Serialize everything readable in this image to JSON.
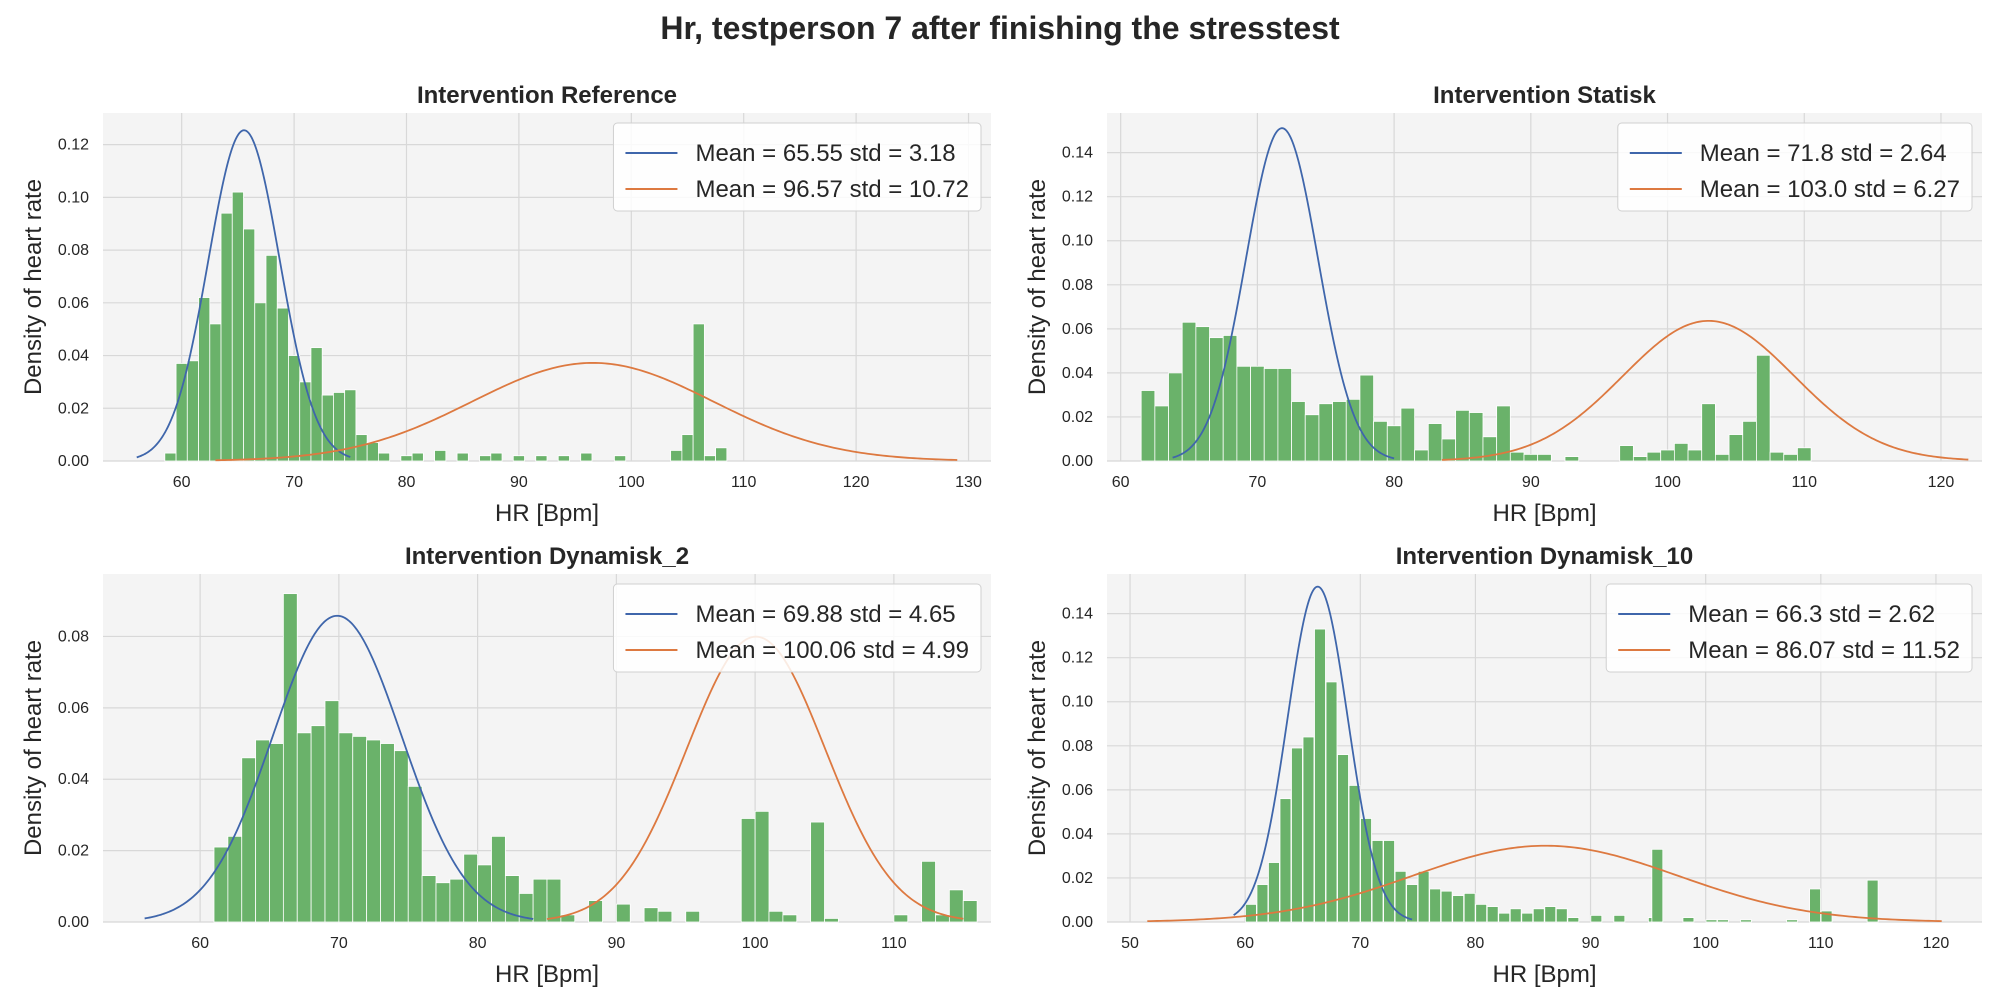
{
  "figure": {
    "title": "Hr, testperson 7 after finishing the stresstest",
    "bar_color": "#6ab26a",
    "plot_bg": "#f4f4f4",
    "grid_color": "#d8d8d8",
    "line_colors": [
      "#3f66ab",
      "#dd7940"
    ]
  },
  "chart_data": [
    {
      "type": "bar",
      "title": "Intervention Reference",
      "xlabel": "HR [Bpm]",
      "ylabel": "Density of heart rate",
      "xlim": [
        53,
        132
      ],
      "ylim": [
        0,
        0.132
      ],
      "xticks": [
        60,
        70,
        80,
        90,
        100,
        110,
        120,
        130
      ],
      "yticks": [
        0.0,
        0.02,
        0.04,
        0.06,
        0.08,
        0.1,
        0.12
      ],
      "ytick_decimals": 2,
      "grid": true,
      "legend_position": "top-right",
      "bin_width": 1.0,
      "histogram": [
        {
          "x": 59,
          "y": 0.003
        },
        {
          "x": 60,
          "y": 0.037
        },
        {
          "x": 61,
          "y": 0.038
        },
        {
          "x": 62,
          "y": 0.062
        },
        {
          "x": 63,
          "y": 0.052
        },
        {
          "x": 64,
          "y": 0.094
        },
        {
          "x": 65,
          "y": 0.102
        },
        {
          "x": 66,
          "y": 0.088
        },
        {
          "x": 67,
          "y": 0.06
        },
        {
          "x": 68,
          "y": 0.078
        },
        {
          "x": 69,
          "y": 0.058
        },
        {
          "x": 70,
          "y": 0.04
        },
        {
          "x": 71,
          "y": 0.03
        },
        {
          "x": 72,
          "y": 0.043
        },
        {
          "x": 73,
          "y": 0.025
        },
        {
          "x": 74,
          "y": 0.026
        },
        {
          "x": 75,
          "y": 0.027
        },
        {
          "x": 76,
          "y": 0.01
        },
        {
          "x": 77,
          "y": 0.007
        },
        {
          "x": 78,
          "y": 0.003
        },
        {
          "x": 80,
          "y": 0.002
        },
        {
          "x": 81,
          "y": 0.003
        },
        {
          "x": 83,
          "y": 0.004
        },
        {
          "x": 85,
          "y": 0.003
        },
        {
          "x": 87,
          "y": 0.002
        },
        {
          "x": 88,
          "y": 0.003
        },
        {
          "x": 90,
          "y": 0.002
        },
        {
          "x": 92,
          "y": 0.002
        },
        {
          "x": 94,
          "y": 0.002
        },
        {
          "x": 96,
          "y": 0.003
        },
        {
          "x": 99,
          "y": 0.002
        },
        {
          "x": 104,
          "y": 0.004
        },
        {
          "x": 105,
          "y": 0.01
        },
        {
          "x": 106,
          "y": 0.052
        },
        {
          "x": 107,
          "y": 0.002
        },
        {
          "x": 108,
          "y": 0.005
        }
      ],
      "series": [
        {
          "name": "Mean = 65.55 std = 3.18",
          "mean": 65.55,
          "std": 3.18,
          "x_range": [
            56,
            75
          ]
        },
        {
          "name": "Mean = 96.57 std = 10.72",
          "mean": 96.57,
          "std": 10.72,
          "x_range": [
            63,
            129
          ]
        }
      ]
    },
    {
      "type": "bar",
      "title": "Intervention Statisk",
      "xlabel": "HR [Bpm]",
      "ylabel": "Density of heart rate",
      "xlim": [
        59,
        123
      ],
      "ylim": [
        0,
        0.158
      ],
      "xticks": [
        60,
        70,
        80,
        90,
        100,
        110,
        120
      ],
      "yticks": [
        0.0,
        0.02,
        0.04,
        0.06,
        0.08,
        0.1,
        0.12,
        0.14
      ],
      "ytick_decimals": 2,
      "grid": true,
      "legend_position": "top-right",
      "bin_width": 1.0,
      "histogram": [
        {
          "x": 62,
          "y": 0.032
        },
        {
          "x": 63,
          "y": 0.025
        },
        {
          "x": 64,
          "y": 0.04
        },
        {
          "x": 65,
          "y": 0.063
        },
        {
          "x": 66,
          "y": 0.061
        },
        {
          "x": 67,
          "y": 0.056
        },
        {
          "x": 68,
          "y": 0.057
        },
        {
          "x": 69,
          "y": 0.043
        },
        {
          "x": 70,
          "y": 0.043
        },
        {
          "x": 71,
          "y": 0.042
        },
        {
          "x": 72,
          "y": 0.042
        },
        {
          "x": 73,
          "y": 0.027
        },
        {
          "x": 74,
          "y": 0.021
        },
        {
          "x": 75,
          "y": 0.026
        },
        {
          "x": 76,
          "y": 0.027
        },
        {
          "x": 77,
          "y": 0.028
        },
        {
          "x": 78,
          "y": 0.039
        },
        {
          "x": 79,
          "y": 0.018
        },
        {
          "x": 80,
          "y": 0.016
        },
        {
          "x": 81,
          "y": 0.024
        },
        {
          "x": 82,
          "y": 0.005
        },
        {
          "x": 83,
          "y": 0.017
        },
        {
          "x": 84,
          "y": 0.01
        },
        {
          "x": 85,
          "y": 0.023
        },
        {
          "x": 86,
          "y": 0.022
        },
        {
          "x": 87,
          "y": 0.011
        },
        {
          "x": 88,
          "y": 0.025
        },
        {
          "x": 89,
          "y": 0.004
        },
        {
          "x": 90,
          "y": 0.003
        },
        {
          "x": 91,
          "y": 0.003
        },
        {
          "x": 93,
          "y": 0.002
        },
        {
          "x": 97,
          "y": 0.007
        },
        {
          "x": 98,
          "y": 0.002
        },
        {
          "x": 99,
          "y": 0.004
        },
        {
          "x": 100,
          "y": 0.005
        },
        {
          "x": 101,
          "y": 0.008
        },
        {
          "x": 102,
          "y": 0.005
        },
        {
          "x": 103,
          "y": 0.026
        },
        {
          "x": 104,
          "y": 0.003
        },
        {
          "x": 105,
          "y": 0.012
        },
        {
          "x": 106,
          "y": 0.018
        },
        {
          "x": 107,
          "y": 0.048
        },
        {
          "x": 108,
          "y": 0.004
        },
        {
          "x": 109,
          "y": 0.003
        },
        {
          "x": 110,
          "y": 0.006
        }
      ],
      "series": [
        {
          "name": "Mean = 71.8 std = 2.64",
          "mean": 71.8,
          "std": 2.64,
          "x_range": [
            63.8,
            80
          ]
        },
        {
          "name": "Mean = 103.0 std = 6.27",
          "mean": 103.0,
          "std": 6.27,
          "x_range": [
            83.5,
            122
          ]
        }
      ]
    },
    {
      "type": "bar",
      "title": "Intervention Dynamisk_2",
      "xlabel": "HR [Bpm]",
      "ylabel": "Density of heart rate",
      "xlim": [
        53,
        117
      ],
      "ylim": [
        0,
        0.0975
      ],
      "xticks": [
        60,
        70,
        80,
        90,
        100,
        110
      ],
      "yticks": [
        0.0,
        0.02,
        0.04,
        0.06,
        0.08
      ],
      "ytick_decimals": 2,
      "grid": true,
      "legend_position": "top-right",
      "bin_width": 1.0,
      "histogram": [
        {
          "x": 61.5,
          "y": 0.021
        },
        {
          "x": 62.5,
          "y": 0.024
        },
        {
          "x": 63.5,
          "y": 0.046
        },
        {
          "x": 64.5,
          "y": 0.051
        },
        {
          "x": 65.5,
          "y": 0.05
        },
        {
          "x": 66.5,
          "y": 0.092
        },
        {
          "x": 67.5,
          "y": 0.053
        },
        {
          "x": 68.5,
          "y": 0.055
        },
        {
          "x": 69.5,
          "y": 0.062
        },
        {
          "x": 70.5,
          "y": 0.053
        },
        {
          "x": 71.5,
          "y": 0.052
        },
        {
          "x": 72.5,
          "y": 0.051
        },
        {
          "x": 73.5,
          "y": 0.05
        },
        {
          "x": 74.5,
          "y": 0.048
        },
        {
          "x": 75.5,
          "y": 0.038
        },
        {
          "x": 76.5,
          "y": 0.013
        },
        {
          "x": 77.5,
          "y": 0.011
        },
        {
          "x": 78.5,
          "y": 0.012
        },
        {
          "x": 79.5,
          "y": 0.019
        },
        {
          "x": 80.5,
          "y": 0.016
        },
        {
          "x": 81.5,
          "y": 0.024
        },
        {
          "x": 82.5,
          "y": 0.013
        },
        {
          "x": 83.5,
          "y": 0.008
        },
        {
          "x": 84.5,
          "y": 0.012
        },
        {
          "x": 85.5,
          "y": 0.012
        },
        {
          "x": 86.5,
          "y": 0.002
        },
        {
          "x": 88.5,
          "y": 0.006
        },
        {
          "x": 90.5,
          "y": 0.005
        },
        {
          "x": 92.5,
          "y": 0.004
        },
        {
          "x": 93.5,
          "y": 0.003
        },
        {
          "x": 95.5,
          "y": 0.003
        },
        {
          "x": 99.5,
          "y": 0.029
        },
        {
          "x": 100.5,
          "y": 0.031
        },
        {
          "x": 101.5,
          "y": 0.003
        },
        {
          "x": 102.5,
          "y": 0.002
        },
        {
          "x": 104.5,
          "y": 0.028
        },
        {
          "x": 105.5,
          "y": 0.001
        },
        {
          "x": 110.5,
          "y": 0.002
        },
        {
          "x": 112.5,
          "y": 0.017
        },
        {
          "x": 113.5,
          "y": 0.002
        },
        {
          "x": 114.5,
          "y": 0.009
        },
        {
          "x": 115.5,
          "y": 0.006
        }
      ],
      "series": [
        {
          "name": "Mean = 69.88 std = 4.65",
          "mean": 69.88,
          "std": 4.65,
          "x_range": [
            56,
            84
          ]
        },
        {
          "name": "Mean = 100.06 std = 4.99",
          "mean": 100.06,
          "std": 4.99,
          "x_range": [
            85,
            115
          ]
        }
      ]
    },
    {
      "type": "bar",
      "title": "Intervention Dynamisk_10",
      "xlabel": "HR [Bpm]",
      "ylabel": "Density of heart rate",
      "xlim": [
        48,
        124
      ],
      "ylim": [
        0,
        0.158
      ],
      "xticks": [
        50,
        60,
        70,
        80,
        90,
        100,
        110,
        120
      ],
      "yticks": [
        0.0,
        0.02,
        0.04,
        0.06,
        0.08,
        0.1,
        0.12,
        0.14
      ],
      "ytick_decimals": 2,
      "grid": true,
      "legend_position": "top-right",
      "bin_width": 0.95,
      "histogram": [
        {
          "x": 60.5,
          "y": 0.008
        },
        {
          "x": 61.5,
          "y": 0.017
        },
        {
          "x": 62.5,
          "y": 0.027
        },
        {
          "x": 63.5,
          "y": 0.056
        },
        {
          "x": 64.5,
          "y": 0.079
        },
        {
          "x": 65.5,
          "y": 0.084
        },
        {
          "x": 66.5,
          "y": 0.133
        },
        {
          "x": 67.5,
          "y": 0.109
        },
        {
          "x": 68.5,
          "y": 0.076
        },
        {
          "x": 69.5,
          "y": 0.062
        },
        {
          "x": 70.5,
          "y": 0.047
        },
        {
          "x": 71.5,
          "y": 0.037
        },
        {
          "x": 72.5,
          "y": 0.037
        },
        {
          "x": 73.5,
          "y": 0.023
        },
        {
          "x": 74.5,
          "y": 0.017
        },
        {
          "x": 75.5,
          "y": 0.023
        },
        {
          "x": 76.5,
          "y": 0.015
        },
        {
          "x": 77.5,
          "y": 0.014
        },
        {
          "x": 78.5,
          "y": 0.012
        },
        {
          "x": 79.5,
          "y": 0.013
        },
        {
          "x": 80.5,
          "y": 0.008
        },
        {
          "x": 81.5,
          "y": 0.007
        },
        {
          "x": 82.5,
          "y": 0.004
        },
        {
          "x": 83.5,
          "y": 0.006
        },
        {
          "x": 84.5,
          "y": 0.004
        },
        {
          "x": 85.5,
          "y": 0.006
        },
        {
          "x": 86.5,
          "y": 0.007
        },
        {
          "x": 87.5,
          "y": 0.006
        },
        {
          "x": 88.5,
          "y": 0.002
        },
        {
          "x": 90.5,
          "y": 0.003
        },
        {
          "x": 92.5,
          "y": 0.003
        },
        {
          "x": 95.5,
          "y": 0.002
        },
        {
          "x": 95.8,
          "y": 0.033
        },
        {
          "x": 98.5,
          "y": 0.002
        },
        {
          "x": 100.5,
          "y": 0.001
        },
        {
          "x": 101.5,
          "y": 0.001
        },
        {
          "x": 103.5,
          "y": 0.001
        },
        {
          "x": 107.5,
          "y": 0.001
        },
        {
          "x": 109.5,
          "y": 0.015
        },
        {
          "x": 110.5,
          "y": 0.005
        },
        {
          "x": 114.5,
          "y": 0.019
        }
      ],
      "series": [
        {
          "name": "Mean = 66.3 std = 2.62",
          "mean": 66.3,
          "std": 2.62,
          "x_range": [
            59,
            74.5
          ]
        },
        {
          "name": "Mean = 86.07 std = 11.52",
          "mean": 86.07,
          "std": 11.52,
          "x_range": [
            51.5,
            120.5
          ]
        }
      ]
    }
  ]
}
